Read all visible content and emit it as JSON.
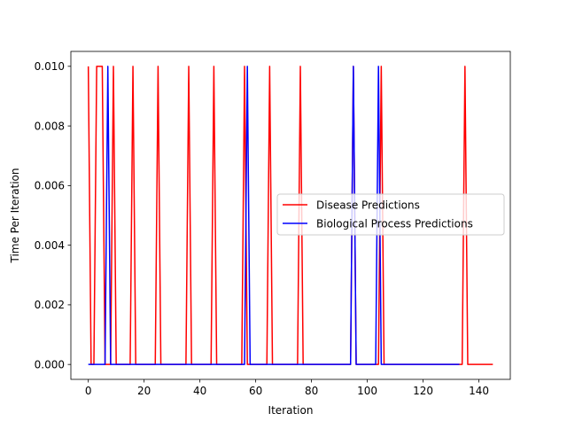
{
  "chart_data": {
    "type": "line",
    "title": "",
    "xlabel": "Iteration",
    "ylabel": "Time Per Iteration",
    "xlim": [
      -6.25,
      151.25
    ],
    "ylim": [
      -0.0005,
      0.0105
    ],
    "x_ticks": [
      0,
      20,
      40,
      60,
      80,
      100,
      120,
      140
    ],
    "x_tick_labels": [
      "0",
      "20",
      "40",
      "60",
      "80",
      "100",
      "120",
      "140"
    ],
    "y_ticks": [
      0.0,
      0.002,
      0.004,
      0.006,
      0.008,
      0.01
    ],
    "y_tick_labels": [
      "0.000",
      "0.002",
      "0.004",
      "0.006",
      "0.008",
      "0.010"
    ],
    "grid": false,
    "legend_position": "center-right",
    "series": [
      {
        "name": "Disease Predictions",
        "color": "#ff0000",
        "points": [
          [
            0,
            0.01
          ],
          [
            1,
            0
          ],
          [
            2,
            0
          ],
          [
            3,
            0.01
          ],
          [
            4,
            0.01
          ],
          [
            5,
            0.01
          ],
          [
            6,
            0
          ],
          [
            7,
            0
          ],
          [
            8,
            0
          ],
          [
            9,
            0.01
          ],
          [
            10,
            0
          ],
          [
            15,
            0
          ],
          [
            16,
            0.01
          ],
          [
            17,
            0
          ],
          [
            24,
            0
          ],
          [
            25,
            0.01
          ],
          [
            26,
            0
          ],
          [
            35,
            0
          ],
          [
            36,
            0.01
          ],
          [
            37,
            0
          ],
          [
            44,
            0
          ],
          [
            45,
            0.01
          ],
          [
            46,
            0
          ],
          [
            55,
            0
          ],
          [
            56,
            0.01
          ],
          [
            57,
            0
          ],
          [
            64,
            0
          ],
          [
            65,
            0.01
          ],
          [
            66,
            0
          ],
          [
            75,
            0
          ],
          [
            76,
            0.01
          ],
          [
            77,
            0
          ],
          [
            94,
            0
          ],
          [
            95,
            0.01
          ],
          [
            96,
            0
          ],
          [
            104,
            0
          ],
          [
            105,
            0.01
          ],
          [
            106,
            0
          ],
          [
            134,
            0
          ],
          [
            135,
            0.01
          ],
          [
            136,
            0
          ],
          [
            145,
            0
          ]
        ]
      },
      {
        "name": "Biological Process Predictions",
        "color": "#0000ff",
        "points": [
          [
            0,
            0
          ],
          [
            6,
            0
          ],
          [
            7,
            0.01
          ],
          [
            8,
            0
          ],
          [
            56,
            0
          ],
          [
            57,
            0.01
          ],
          [
            58,
            0
          ],
          [
            94,
            0
          ],
          [
            95,
            0.01
          ],
          [
            96,
            0
          ],
          [
            103,
            0
          ],
          [
            104,
            0.01
          ],
          [
            105,
            0
          ],
          [
            133,
            0
          ]
        ]
      }
    ]
  }
}
